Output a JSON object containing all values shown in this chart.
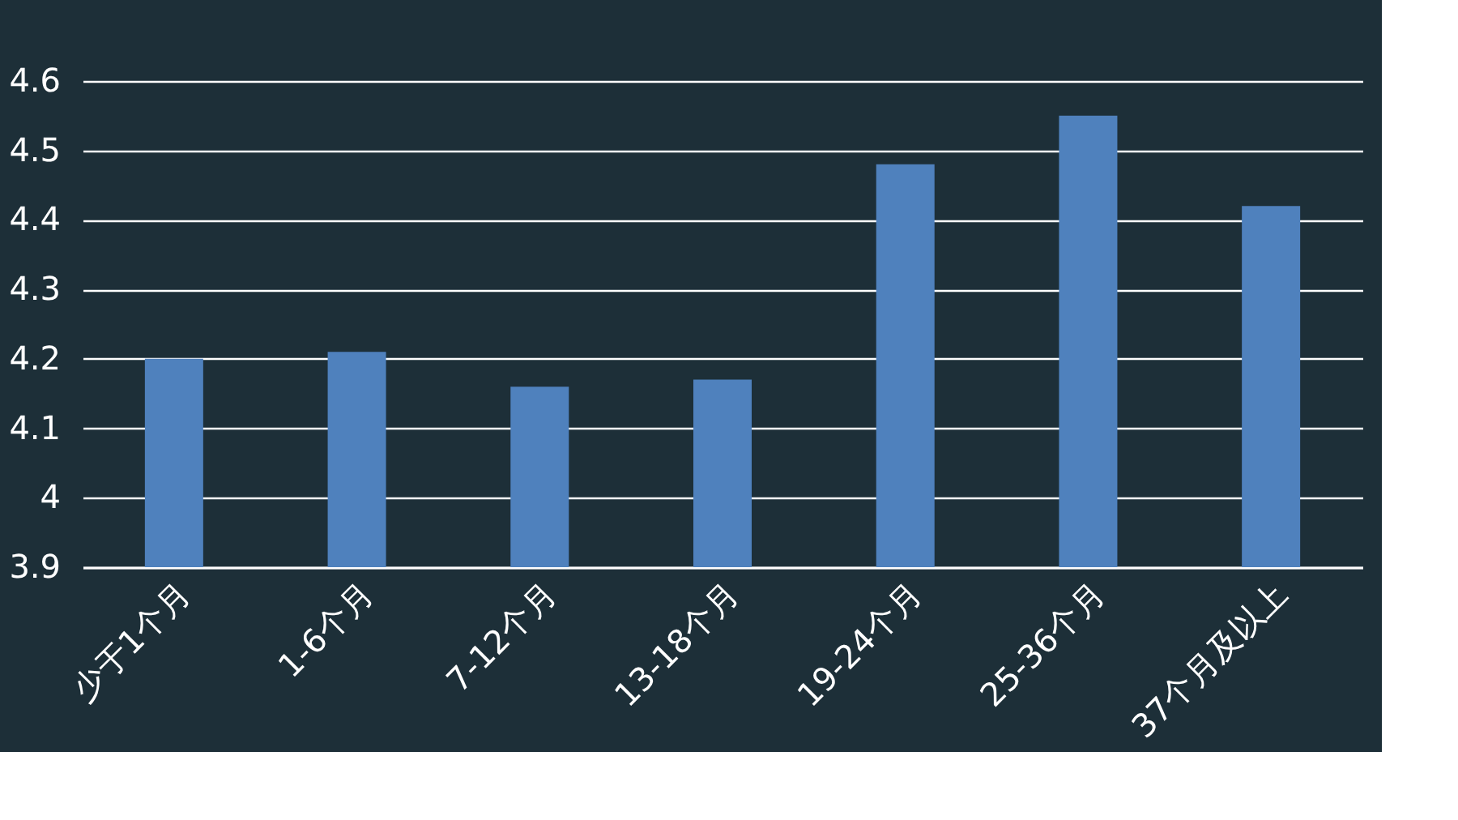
{
  "chart_data": {
    "type": "bar",
    "categories": [
      "少于1个月",
      "1-6个月",
      "7-12个月",
      "13-18个月",
      "19-24个月",
      "25-36个月",
      "37个月及以上"
    ],
    "values": [
      4.2,
      4.21,
      4.16,
      4.17,
      4.48,
      4.55,
      4.42
    ],
    "color": "#4f81bd",
    "ylim": [
      3.9,
      4.6
    ],
    "yticks": [
      3.9,
      4.0,
      4.1,
      4.2,
      4.3,
      4.4,
      4.5,
      4.6
    ],
    "grid": "y"
  }
}
